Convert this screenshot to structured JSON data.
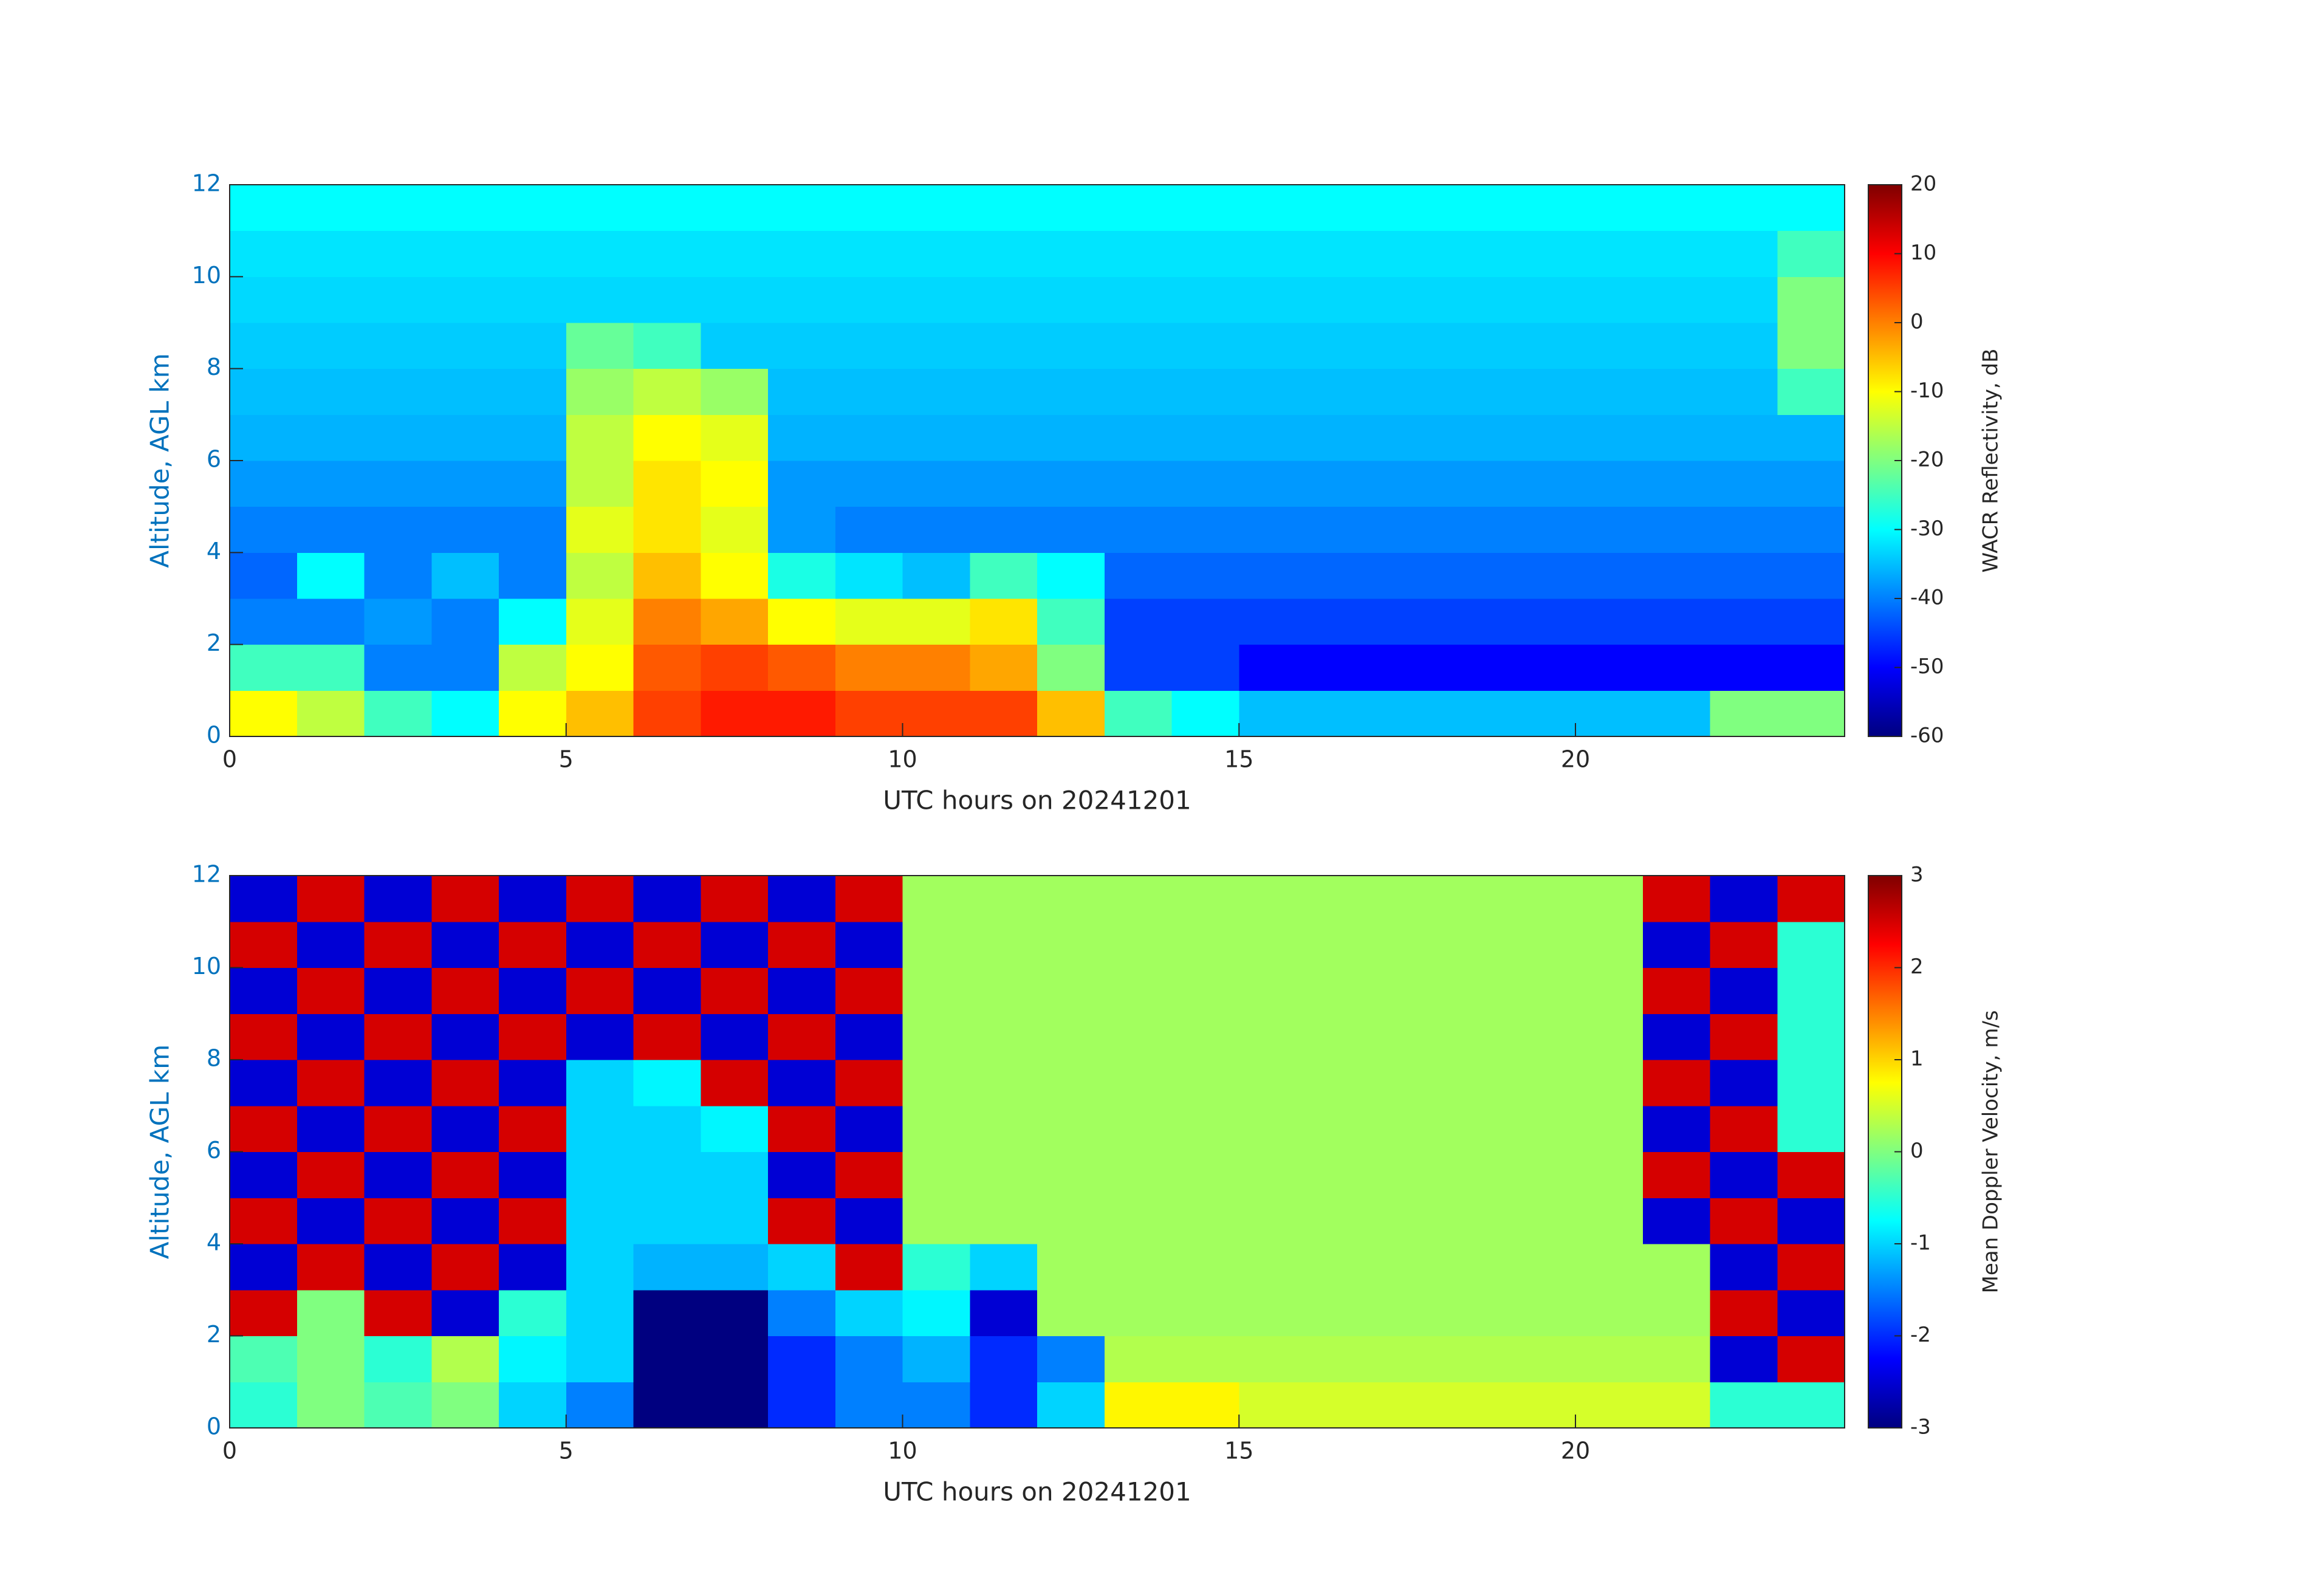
{
  "chart_data": [
    {
      "type": "heatmap",
      "xlabel": "UTC hours on 20241201",
      "ylabel": "Altitude, AGL km",
      "colorbar_label": "WACR Reflectivity, dB",
      "colormap": "jet",
      "xlim": [
        0,
        24
      ],
      "ylim": [
        0,
        12
      ],
      "xticks": [
        0,
        5,
        10,
        15,
        20
      ],
      "yticks": [
        0,
        2,
        4,
        6,
        8,
        10,
        12
      ],
      "clim": [
        -60,
        20
      ],
      "cticks": [
        -60,
        -50,
        -40,
        -30,
        -20,
        -10,
        0,
        10,
        20
      ],
      "x": [
        0.5,
        1.5,
        2.5,
        3.5,
        4.5,
        5.5,
        6.5,
        7.5,
        8.5,
        9.5,
        10.5,
        11.5,
        12.5,
        13.5,
        14.5,
        15.5,
        16.5,
        17.5,
        18.5,
        19.5,
        20.5,
        21.5,
        22.5,
        23.5
      ],
      "y": [
        0.5,
        1.5,
        2.5,
        3.5,
        4.5,
        5.5,
        6.5,
        7.5,
        8.5,
        9.5,
        10.5,
        11.5
      ],
      "z": [
        [
          -10,
          -15,
          -25,
          -30,
          -10,
          -5,
          5,
          8,
          8,
          5,
          5,
          5,
          -5,
          -25,
          -30,
          -35,
          -35,
          -35,
          -35,
          -35,
          -35,
          -35,
          -20,
          -20
        ],
        [
          -25,
          -25,
          -40,
          -40,
          -15,
          -10,
          3,
          5,
          3,
          0,
          0,
          -3,
          -20,
          -45,
          -45,
          -50,
          -50,
          -50,
          -50,
          -50,
          -50,
          -50,
          -50,
          -50
        ],
        [
          -40,
          -40,
          -38,
          -40,
          -30,
          -12,
          0,
          -3,
          -10,
          -12,
          -12,
          -8,
          -25,
          -45,
          -45,
          -45,
          -45,
          -45,
          -45,
          -45,
          -45,
          -45,
          -45,
          -45
        ],
        [
          -42,
          -30,
          -40,
          -35,
          -40,
          -15,
          -5,
          -10,
          -28,
          -32,
          -35,
          -25,
          -30,
          -42,
          -42,
          -42,
          -42,
          -42,
          -42,
          -42,
          -42,
          -42,
          -42,
          -42
        ],
        [
          -40,
          -40,
          -40,
          -40,
          -40,
          -12,
          -8,
          -12,
          -38,
          -40,
          -40,
          -40,
          -40,
          -40,
          -40,
          -40,
          -40,
          -40,
          -40,
          -40,
          -40,
          -40,
          -40,
          -40
        ],
        [
          -38,
          -38,
          -38,
          -38,
          -38,
          -15,
          -8,
          -10,
          -38,
          -38,
          -38,
          -38,
          -38,
          -38,
          -38,
          -38,
          -38,
          -38,
          -38,
          -38,
          -38,
          -38,
          -38,
          -38
        ],
        [
          -36,
          -36,
          -36,
          -36,
          -36,
          -15,
          -10,
          -12,
          -36,
          -36,
          -36,
          -36,
          -36,
          -36,
          -36,
          -36,
          -36,
          -36,
          -36,
          -36,
          -36,
          -36,
          -36,
          -36
        ],
        [
          -35,
          -35,
          -35,
          -35,
          -35,
          -18,
          -15,
          -18,
          -35,
          -35,
          -35,
          -35,
          -35,
          -35,
          -35,
          -35,
          -35,
          -35,
          -35,
          -35,
          -35,
          -35,
          -35,
          -25
        ],
        [
          -34,
          -34,
          -34,
          -34,
          -34,
          -22,
          -25,
          -34,
          -34,
          -34,
          -34,
          -34,
          -34,
          -34,
          -34,
          -34,
          -34,
          -34,
          -34,
          -34,
          -34,
          -34,
          -34,
          -20
        ],
        [
          -33,
          -33,
          -33,
          -33,
          -33,
          -33,
          -33,
          -33,
          -33,
          -33,
          -33,
          -33,
          -33,
          -33,
          -33,
          -33,
          -33,
          -33,
          -33,
          -33,
          -33,
          -33,
          -33,
          -20
        ],
        [
          -32,
          -32,
          -32,
          -32,
          -32,
          -32,
          -32,
          -32,
          -32,
          -32,
          -32,
          -32,
          -32,
          -32,
          -32,
          -32,
          -32,
          -32,
          -32,
          -32,
          -32,
          -32,
          -32,
          -25
        ],
        [
          -30,
          -30,
          -30,
          -30,
          -30,
          -30,
          -30,
          -30,
          -30,
          -30,
          -30,
          -30,
          -30,
          -30,
          -30,
          -30,
          -30,
          -30,
          -30,
          -30,
          -30,
          -30,
          -30,
          -30
        ]
      ]
    },
    {
      "type": "heatmap",
      "xlabel": "UTC hours on 20241201",
      "ylabel": "Altitude, AGL km",
      "colorbar_label": "Mean Doppler Velocity, m/s",
      "colormap": "jet",
      "xlim": [
        0,
        24
      ],
      "ylim": [
        0,
        12
      ],
      "xticks": [
        0,
        5,
        10,
        15,
        20
      ],
      "yticks": [
        0,
        2,
        4,
        6,
        8,
        10,
        12
      ],
      "clim": [
        -3,
        3
      ],
      "cticks": [
        -3,
        -2,
        -1,
        0,
        1,
        2,
        3
      ],
      "x": [
        0.5,
        1.5,
        2.5,
        3.5,
        4.5,
        5.5,
        6.5,
        7.5,
        8.5,
        9.5,
        10.5,
        11.5,
        12.5,
        13.5,
        14.5,
        15.5,
        16.5,
        17.5,
        18.5,
        19.5,
        20.5,
        21.5,
        22.5,
        23.5
      ],
      "y": [
        0.5,
        1.5,
        2.5,
        3.5,
        4.5,
        5.5,
        6.5,
        7.5,
        8.5,
        9.5,
        10.5,
        11.5
      ],
      "z": [
        [
          -0.5,
          0,
          -0.3,
          0,
          -1,
          -1.5,
          -3,
          -3,
          -2,
          -1.5,
          -1.5,
          -2,
          -1,
          0.8,
          0.8,
          0.5,
          0.5,
          0.5,
          0.5,
          0.5,
          0.5,
          0.5,
          -0.5,
          -0.5
        ],
        [
          -0.3,
          0,
          -0.5,
          0.3,
          -0.8,
          -1,
          -3,
          -3,
          -2,
          -1.5,
          -1.2,
          -2,
          -1.5,
          0.3,
          0.3,
          0.3,
          0.3,
          0.3,
          0.3,
          0.3,
          0.3,
          0.3,
          -2.5,
          2.5
        ],
        [
          2.5,
          0,
          2.5,
          -2.5,
          -0.5,
          -1,
          -3,
          -3,
          -1.5,
          -1,
          -0.8,
          -2.5,
          0.2,
          0.2,
          0.2,
          0.2,
          0.2,
          0.2,
          0.2,
          0.2,
          0.2,
          0.2,
          2.5,
          -2.5
        ],
        [
          -2.5,
          2.5,
          -2.5,
          2.5,
          -2.5,
          -1,
          -1.2,
          -1.2,
          -1,
          2.5,
          -0.5,
          -1,
          0.2,
          0.2,
          0.2,
          0.2,
          0.2,
          0.2,
          0.2,
          0.2,
          0.2,
          0.2,
          -2.5,
          2.5
        ],
        [
          2.5,
          -2.5,
          2.5,
          -2.5,
          2.5,
          -1,
          -1,
          -1,
          2.5,
          -2.5,
          0.2,
          0.2,
          0.2,
          0.2,
          0.2,
          0.2,
          0.2,
          0.2,
          0.2,
          0.2,
          0.2,
          -2.5,
          2.5,
          -2.5
        ],
        [
          -2.5,
          2.5,
          -2.5,
          2.5,
          -2.5,
          -1,
          -1,
          -1,
          -2.5,
          2.5,
          0.2,
          0.2,
          0.2,
          0.2,
          0.2,
          0.2,
          0.2,
          0.2,
          0.2,
          0.2,
          0.2,
          2.5,
          -2.5,
          2.5
        ],
        [
          2.5,
          -2.5,
          2.5,
          -2.5,
          2.5,
          -1,
          -1,
          -0.8,
          2.5,
          -2.5,
          0.2,
          0.2,
          0.2,
          0.2,
          0.2,
          0.2,
          0.2,
          0.2,
          0.2,
          0.2,
          0.2,
          -2.5,
          2.5,
          -0.5
        ],
        [
          -2.5,
          2.5,
          -2.5,
          2.5,
          -2.5,
          -1,
          -0.8,
          2.5,
          -2.5,
          2.5,
          0.2,
          0.2,
          0.2,
          0.2,
          0.2,
          0.2,
          0.2,
          0.2,
          0.2,
          0.2,
          0.2,
          2.5,
          -2.5,
          -0.5
        ],
        [
          2.5,
          -2.5,
          2.5,
          -2.5,
          2.5,
          -2.5,
          2.5,
          -2.5,
          2.5,
          -2.5,
          0.2,
          0.2,
          0.2,
          0.2,
          0.2,
          0.2,
          0.2,
          0.2,
          0.2,
          0.2,
          0.2,
          -2.5,
          2.5,
          -0.5
        ],
        [
          -2.5,
          2.5,
          -2.5,
          2.5,
          -2.5,
          2.5,
          -2.5,
          2.5,
          -2.5,
          2.5,
          0.2,
          0.2,
          0.2,
          0.2,
          0.2,
          0.2,
          0.2,
          0.2,
          0.2,
          0.2,
          0.2,
          2.5,
          -2.5,
          -0.5
        ],
        [
          2.5,
          -2.5,
          2.5,
          -2.5,
          2.5,
          -2.5,
          2.5,
          -2.5,
          2.5,
          -2.5,
          0.2,
          0.2,
          0.2,
          0.2,
          0.2,
          0.2,
          0.2,
          0.2,
          0.2,
          0.2,
          0.2,
          -2.5,
          2.5,
          -0.5
        ],
        [
          -2.5,
          2.5,
          -2.5,
          2.5,
          -2.5,
          2.5,
          -2.5,
          2.5,
          -2.5,
          2.5,
          0.2,
          0.2,
          0.2,
          0.2,
          0.2,
          0.2,
          0.2,
          0.2,
          0.2,
          0.2,
          0.2,
          2.5,
          -2.5,
          2.5
        ]
      ]
    }
  ]
}
